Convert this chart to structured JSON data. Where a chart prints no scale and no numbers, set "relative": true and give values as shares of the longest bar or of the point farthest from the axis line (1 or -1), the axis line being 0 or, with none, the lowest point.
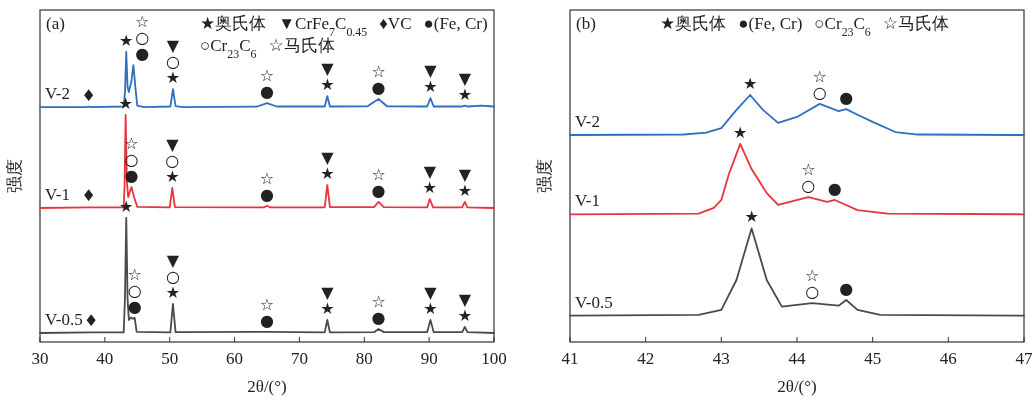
{
  "chart_data": [
    {
      "type": "line",
      "title": "(a)",
      "xlabel": "2θ/(°)",
      "ylabel": "强度",
      "relative": true,
      "tick_labels": "x",
      "xlim": [
        30,
        100
      ],
      "xticks": [
        30,
        40,
        50,
        60,
        70,
        80,
        90,
        100
      ],
      "series": [
        {
          "name": "V-2",
          "color": "#2f6fbf",
          "x": [
            30,
            37,
            37.5,
            38,
            42.9,
            43.1,
            43.3,
            43.5,
            43.7,
            44.1,
            44.4,
            44.7,
            45,
            46,
            50.1,
            50.5,
            50.9,
            52,
            63.5,
            65,
            66.5,
            73.9,
            74.3,
            74.7,
            80.5,
            82.2,
            83.5,
            89.7,
            90.2,
            90.7,
            95,
            95.5,
            96,
            98,
            100
          ],
          "values": [
            0.81,
            0.81,
            0.812,
            0.81,
            0.812,
            0.86,
            1.0,
            0.88,
            0.862,
            0.9,
            0.955,
            0.88,
            0.815,
            0.81,
            0.812,
            0.872,
            0.813,
            0.81,
            0.812,
            0.824,
            0.812,
            0.812,
            0.848,
            0.812,
            0.813,
            0.838,
            0.813,
            0.812,
            0.841,
            0.812,
            0.812,
            0.815,
            0.812,
            0.815,
            0.812
          ]
        },
        {
          "name": "V-1",
          "color": "#e8343c",
          "x": [
            30,
            37.5,
            42.9,
            43.05,
            43.2,
            43.4,
            43.6,
            44.1,
            44.5,
            45,
            50,
            50.4,
            50.8,
            64.5,
            65,
            65.5,
            73.9,
            74.3,
            74.7,
            81.5,
            82.2,
            83,
            89.7,
            90.1,
            90.6,
            95.1,
            95.5,
            95.9,
            100
          ],
          "values": [
            0.462,
            0.464,
            0.464,
            0.55,
            0.783,
            0.55,
            0.5,
            0.534,
            0.5,
            0.466,
            0.464,
            0.531,
            0.465,
            0.464,
            0.47,
            0.464,
            0.464,
            0.541,
            0.465,
            0.465,
            0.483,
            0.465,
            0.464,
            0.493,
            0.464,
            0.464,
            0.483,
            0.464,
            0.462
          ]
        },
        {
          "name": "V-0.5",
          "color": "#4a4a4a",
          "x": [
            30,
            37.9,
            42.9,
            43.1,
            43.3,
            43.5,
            43.7,
            44,
            44.3,
            44.6,
            44.9,
            50.1,
            50.5,
            50.9,
            65,
            73.9,
            74.3,
            74.7,
            81.5,
            82.2,
            83,
            89.7,
            90.2,
            90.7,
            95.1,
            95.5,
            95.9,
            100
          ],
          "values": [
            0.031,
            0.033,
            0.033,
            0.15,
            0.428,
            0.15,
            0.076,
            0.085,
            0.08,
            0.083,
            0.035,
            0.033,
            0.131,
            0.034,
            0.035,
            0.033,
            0.076,
            0.033,
            0.034,
            0.045,
            0.034,
            0.034,
            0.076,
            0.034,
            0.034,
            0.052,
            0.034,
            0.031
          ]
        }
      ],
      "annotations": [
        "★奥氏体",
        "▼CrFe$_{7}$C$_{0.45}$",
        "♦VC",
        "●(Fe, Cr)",
        "○Cr$_{23}$C$_{6}$",
        "☆马氏体",
        {
          "text": "★",
          "x": 43.3,
          "y": 1.0
        },
        {
          "text": "☆○●",
          "x": 44.4,
          "y": 0.955
        },
        {
          "text": "▼○★",
          "x": 50.5,
          "y": 0.872
        },
        {
          "text": "☆●",
          "x": 65,
          "y": 0.824
        },
        {
          "text": "▼★",
          "x": 74.3,
          "y": 0.848
        },
        {
          "text": "☆●",
          "x": 82.2,
          "y": 0.838
        },
        {
          "text": "▼★",
          "x": 90.2,
          "y": 0.841
        },
        {
          "text": "▼★",
          "x": 95.5,
          "y": 0.815
        },
        {
          "text": "♦",
          "x": 37.5,
          "y": 0.812
        },
        {
          "text": "★",
          "x": 43.2,
          "y": 0.783
        },
        {
          "text": "☆○●",
          "x": 44.1,
          "y": 0.534
        },
        {
          "text": "▼○★",
          "x": 50.4,
          "y": 0.531
        },
        {
          "text": "☆●",
          "x": 65,
          "y": 0.47
        },
        {
          "text": "▼★",
          "x": 74.3,
          "y": 0.541
        },
        {
          "text": "☆●",
          "x": 82.2,
          "y": 0.483
        },
        {
          "text": "▼★",
          "x": 90.1,
          "y": 0.493
        },
        {
          "text": "▼★",
          "x": 95.5,
          "y": 0.483
        },
        {
          "text": "♦",
          "x": 37.5,
          "y": 0.464
        },
        {
          "text": "★",
          "x": 43.3,
          "y": 0.428
        },
        {
          "text": "☆○●",
          "x": 44.6,
          "y": 0.083
        },
        {
          "text": "▼○★",
          "x": 50.5,
          "y": 0.131
        },
        {
          "text": "☆●",
          "x": 65,
          "y": 0.035
        },
        {
          "text": "▼★",
          "x": 74.3,
          "y": 0.076
        },
        {
          "text": "☆●",
          "x": 82.2,
          "y": 0.045
        },
        {
          "text": "▼★",
          "x": 90.2,
          "y": 0.076
        },
        {
          "text": "▼★",
          "x": 95.5,
          "y": 0.052
        },
        {
          "text": "♦",
          "x": 37.9,
          "y": 0.033
        }
      ]
    },
    {
      "type": "line",
      "title": "(b)",
      "xlabel": "2θ/(°)",
      "ylabel": "强度",
      "relative": true,
      "tick_labels": "x",
      "xlim": [
        41,
        47
      ],
      "xticks": [
        41,
        42,
        43,
        44,
        45,
        46,
        47
      ],
      "series": [
        {
          "name": "V-2",
          "color": "#2f6fbf",
          "x": [
            41,
            42.5,
            42.8,
            43.0,
            43.2,
            43.38,
            43.55,
            43.75,
            44.0,
            44.3,
            44.55,
            44.65,
            44.8,
            45.0,
            45.3,
            45.6,
            47
          ],
          "values": [
            0.838,
            0.84,
            0.848,
            0.866,
            0.94,
            1,
            0.94,
            0.887,
            0.911,
            0.964,
            0.935,
            0.943,
            0.92,
            0.891,
            0.85,
            0.84,
            0.838
          ]
        },
        {
          "name": "V-1",
          "color": "#e8343c",
          "x": [
            41,
            42.7,
            42.9,
            43.0,
            43.1,
            43.25,
            43.4,
            43.6,
            43.75,
            44.15,
            44.4,
            44.5,
            44.8,
            45.2,
            47
          ],
          "values": [
            0.517,
            0.52,
            0.543,
            0.575,
            0.68,
            0.802,
            0.7,
            0.603,
            0.555,
            0.587,
            0.567,
            0.575,
            0.534,
            0.52,
            0.517
          ]
        },
        {
          "name": "V-0.5",
          "color": "#4a4a4a",
          "x": [
            41,
            42.7,
            43.0,
            43.2,
            43.4,
            43.6,
            43.8,
            44.2,
            44.55,
            44.65,
            44.8,
            45.1,
            47
          ],
          "values": [
            0.107,
            0.11,
            0.13,
            0.251,
            0.46,
            0.251,
            0.143,
            0.157,
            0.147,
            0.17,
            0.13,
            0.11,
            0.107
          ]
        }
      ],
      "annotations": [
        "★奥氏体",
        "●(Fe, Cr)",
        "○Cr$_{23}$C$_{6}$",
        "☆马氏体",
        {
          "text": "★",
          "x": 43.38,
          "y": 1
        },
        {
          "text": "☆○",
          "x": 44.3,
          "y": 0.964
        },
        {
          "text": "●",
          "x": 44.65,
          "y": 0.943
        },
        {
          "text": "★",
          "x": 43.25,
          "y": 0.802
        },
        {
          "text": "☆○",
          "x": 44.15,
          "y": 0.587
        },
        {
          "text": "●",
          "x": 44.5,
          "y": 0.575
        },
        {
          "text": "★",
          "x": 43.4,
          "y": 0.46
        },
        {
          "text": "☆○",
          "x": 44.2,
          "y": 0.157
        },
        {
          "text": "●",
          "x": 44.65,
          "y": 0.17
        }
      ]
    }
  ]
}
